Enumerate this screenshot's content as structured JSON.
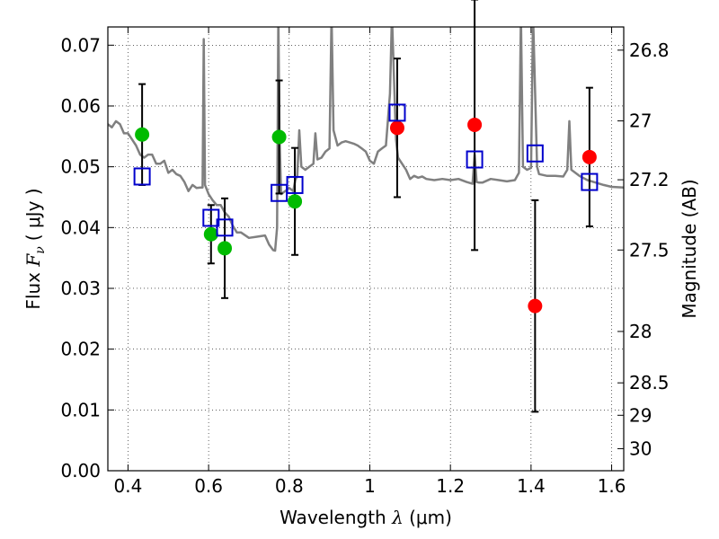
{
  "chart_data": {
    "type": "scatter",
    "xlabel": {
      "prefix": "Wavelength",
      "symbol": "λ",
      "unit": "(μm)"
    },
    "ylabel": {
      "prefix": "Flux",
      "symbol": "F",
      "subscript": "ν",
      "unit": "( μJy )"
    },
    "y2label": "Magnitude (AB)",
    "xlim": [
      0.35,
      1.63
    ],
    "ylim": [
      0.0,
      0.073
    ],
    "grid": true,
    "x_ticks": [
      0.4,
      0.6,
      0.8,
      1.0,
      1.2,
      1.4,
      1.6
    ],
    "x_tick_labels": [
      "0.4",
      "0.6",
      "0.8",
      "1",
      "1.2",
      "1.4",
      "1.6"
    ],
    "y_ticks": [
      0.0,
      0.01,
      0.02,
      0.03,
      0.04,
      0.05,
      0.06,
      0.07
    ],
    "y_tick_labels": [
      "0.00",
      "0.01",
      "0.02",
      "0.03",
      "0.04",
      "0.05",
      "0.06",
      "0.07"
    ],
    "y2_ticks": [
      26.8,
      27.0,
      27.2,
      27.5,
      28.0,
      28.5,
      29.0,
      30.0
    ],
    "y2_tick_labels": [
      "26.8",
      "27",
      "27.2",
      "27.5",
      "28",
      "28.5",
      "29",
      "30"
    ],
    "series": [
      {
        "marker": "circle",
        "color": "#00bb00",
        "points": [
          {
            "x": 0.435,
            "y": 0.0553,
            "err": 0.0083
          },
          {
            "x": 0.606,
            "y": 0.0389,
            "err": 0.0048
          },
          {
            "x": 0.64,
            "y": 0.0366,
            "err": 0.0082
          },
          {
            "x": 0.775,
            "y": 0.0549,
            "err": 0.0093
          },
          {
            "x": 0.814,
            "y": 0.0443,
            "err": 0.0088
          }
        ]
      },
      {
        "marker": "circle",
        "color": "#ff0000",
        "points": [
          {
            "x": 1.068,
            "y": 0.0564,
            "err": 0.0114
          },
          {
            "x": 1.26,
            "y": 0.0569,
            "err": 0.0206
          },
          {
            "x": 1.41,
            "y": 0.0271,
            "err": 0.0174
          },
          {
            "x": 1.545,
            "y": 0.0516,
            "err": 0.0114
          }
        ]
      },
      {
        "marker": "square-open",
        "color": "#0000cc",
        "points": [
          {
            "x": 0.435,
            "y": 0.0484
          },
          {
            "x": 0.606,
            "y": 0.0416
          },
          {
            "x": 0.64,
            "y": 0.04
          },
          {
            "x": 0.775,
            "y": 0.0457
          },
          {
            "x": 0.814,
            "y": 0.047
          },
          {
            "x": 1.068,
            "y": 0.0589
          },
          {
            "x": 1.26,
            "y": 0.0512
          },
          {
            "x": 1.41,
            "y": 0.0522
          },
          {
            "x": 1.545,
            "y": 0.0475
          }
        ]
      }
    ],
    "spectrum": {
      "color": "#808080",
      "points": [
        [
          0.35,
          0.057
        ],
        [
          0.36,
          0.0565
        ],
        [
          0.37,
          0.0575
        ],
        [
          0.38,
          0.057
        ],
        [
          0.39,
          0.0555
        ],
        [
          0.4,
          0.0555
        ],
        [
          0.41,
          0.0545
        ],
        [
          0.42,
          0.0535
        ],
        [
          0.43,
          0.052
        ],
        [
          0.44,
          0.0515
        ],
        [
          0.45,
          0.052
        ],
        [
          0.46,
          0.052
        ],
        [
          0.47,
          0.0505
        ],
        [
          0.48,
          0.0505
        ],
        [
          0.49,
          0.051
        ],
        [
          0.5,
          0.049
        ],
        [
          0.51,
          0.0495
        ],
        [
          0.52,
          0.0488
        ],
        [
          0.53,
          0.0485
        ],
        [
          0.54,
          0.0475
        ],
        [
          0.55,
          0.046
        ],
        [
          0.56,
          0.047
        ],
        [
          0.57,
          0.0465
        ],
        [
          0.58,
          0.0466
        ],
        [
          0.585,
          0.0466
        ],
        [
          0.588,
          0.071
        ],
        [
          0.591,
          0.047
        ],
        [
          0.6,
          0.0455
        ],
        [
          0.61,
          0.0445
        ],
        [
          0.62,
          0.0437
        ],
        [
          0.63,
          0.0437
        ],
        [
          0.64,
          0.0425
        ],
        [
          0.65,
          0.0418
        ],
        [
          0.66,
          0.0403
        ],
        [
          0.67,
          0.0392
        ],
        [
          0.68,
          0.0392
        ],
        [
          0.7,
          0.0383
        ],
        [
          0.72,
          0.0385
        ],
        [
          0.74,
          0.0387
        ],
        [
          0.75,
          0.0372
        ],
        [
          0.76,
          0.0363
        ],
        [
          0.765,
          0.0362
        ],
        [
          0.77,
          0.04
        ],
        [
          0.773,
          0.075
        ],
        [
          0.776,
          0.055
        ],
        [
          0.78,
          0.0455
        ],
        [
          0.79,
          0.046
        ],
        [
          0.8,
          0.0465
        ],
        [
          0.81,
          0.046
        ],
        [
          0.815,
          0.0478
        ],
        [
          0.82,
          0.0485
        ],
        [
          0.825,
          0.056
        ],
        [
          0.83,
          0.05
        ],
        [
          0.84,
          0.0495
        ],
        [
          0.85,
          0.05
        ],
        [
          0.86,
          0.0505
        ],
        [
          0.865,
          0.0555
        ],
        [
          0.87,
          0.0512
        ],
        [
          0.88,
          0.0515
        ],
        [
          0.89,
          0.0525
        ],
        [
          0.9,
          0.053
        ],
        [
          0.905,
          0.075
        ],
        [
          0.91,
          0.056
        ],
        [
          0.92,
          0.0535
        ],
        [
          0.93,
          0.054
        ],
        [
          0.94,
          0.0542
        ],
        [
          0.95,
          0.054
        ],
        [
          0.96,
          0.0538
        ],
        [
          0.97,
          0.0535
        ],
        [
          0.98,
          0.053
        ],
        [
          0.99,
          0.0525
        ],
        [
          1.0,
          0.051
        ],
        [
          1.01,
          0.0505
        ],
        [
          1.02,
          0.0525
        ],
        [
          1.03,
          0.053
        ],
        [
          1.04,
          0.0535
        ],
        [
          1.05,
          0.062
        ],
        [
          1.055,
          0.075
        ],
        [
          1.065,
          0.0545
        ],
        [
          1.07,
          0.0515
        ],
        [
          1.08,
          0.0505
        ],
        [
          1.09,
          0.0495
        ],
        [
          1.1,
          0.048
        ],
        [
          1.11,
          0.0485
        ],
        [
          1.12,
          0.0482
        ],
        [
          1.13,
          0.0484
        ],
        [
          1.14,
          0.048
        ],
        [
          1.16,
          0.0478
        ],
        [
          1.18,
          0.048
        ],
        [
          1.2,
          0.0478
        ],
        [
          1.22,
          0.048
        ],
        [
          1.24,
          0.0475
        ],
        [
          1.255,
          0.0472
        ],
        [
          1.26,
          0.052
        ],
        [
          1.265,
          0.0475
        ],
        [
          1.27,
          0.0474
        ],
        [
          1.28,
          0.0474
        ],
        [
          1.3,
          0.048
        ],
        [
          1.32,
          0.0478
        ],
        [
          1.34,
          0.0476
        ],
        [
          1.36,
          0.0478
        ],
        [
          1.37,
          0.049
        ],
        [
          1.375,
          0.075
        ],
        [
          1.38,
          0.05
        ],
        [
          1.39,
          0.0495
        ],
        [
          1.4,
          0.0498
        ],
        [
          1.405,
          0.075
        ],
        [
          1.415,
          0.05
        ],
        [
          1.42,
          0.0488
        ],
        [
          1.44,
          0.0485
        ],
        [
          1.46,
          0.0485
        ],
        [
          1.48,
          0.0484
        ],
        [
          1.49,
          0.0495
        ],
        [
          1.495,
          0.0575
        ],
        [
          1.5,
          0.0495
        ],
        [
          1.52,
          0.0485
        ],
        [
          1.54,
          0.0478
        ],
        [
          1.56,
          0.0474
        ],
        [
          1.58,
          0.047
        ],
        [
          1.6,
          0.0467
        ],
        [
          1.63,
          0.0466
        ]
      ]
    }
  }
}
